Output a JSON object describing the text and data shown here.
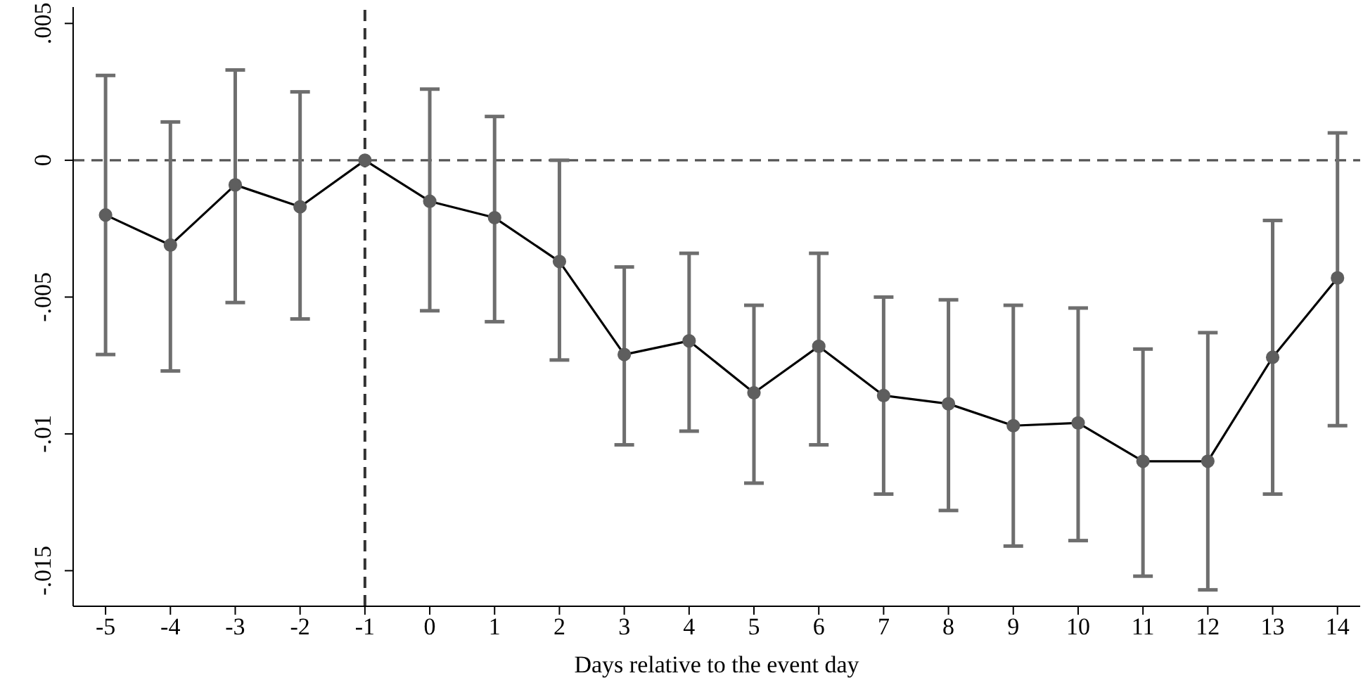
{
  "chart_data": {
    "type": "line",
    "xlabel": "Days relative to the event day",
    "x": [
      -5,
      -4,
      -3,
      -2,
      -1,
      0,
      1,
      2,
      3,
      4,
      5,
      6,
      7,
      8,
      9,
      10,
      11,
      12,
      13,
      14
    ],
    "series": [
      {
        "color": "#5e5e5e",
        "values": [
          -0.002,
          -0.0031,
          -0.0009,
          -0.0017,
          0,
          -0.0015,
          -0.0021,
          -0.0037,
          -0.0071,
          -0.0066,
          -0.0085,
          -0.0068,
          -0.0086,
          -0.0089,
          -0.0097,
          -0.0096,
          -0.011,
          -0.011,
          -0.0072,
          -0.0043
        ],
        "errors": [
          [
            -0.0071,
            0.0031
          ],
          [
            -0.0077,
            0.0014
          ],
          [
            -0.0052,
            0.0033
          ],
          [
            -0.0058,
            0.0025
          ],
          null,
          [
            -0.0055,
            0.0026
          ],
          [
            -0.0059,
            0.0016
          ],
          [
            -0.0073,
            0.0
          ],
          [
            -0.0104,
            -0.0039
          ],
          [
            -0.0099,
            -0.0034
          ],
          [
            -0.0118,
            -0.0053
          ],
          [
            -0.0104,
            -0.0034
          ],
          [
            -0.0122,
            -0.005
          ],
          [
            -0.0128,
            -0.0051
          ],
          [
            -0.0141,
            -0.0053
          ],
          [
            -0.0139,
            -0.0054
          ],
          [
            -0.0152,
            -0.0069
          ],
          [
            -0.0157,
            -0.0063
          ],
          [
            -0.0122,
            -0.0022
          ],
          [
            -0.0097,
            0.001
          ]
        ]
      }
    ],
    "xlim": [
      -5.5,
      14.35
    ],
    "xticks": [
      -5,
      -4,
      -3,
      -2,
      -1,
      0,
      1,
      2,
      3,
      4,
      5,
      6,
      7,
      8,
      9,
      10,
      11,
      12,
      13,
      14
    ],
    "ylim": [
      -0.0163,
      0.0056
    ],
    "yticks": [
      {
        "value": -0.015,
        "label": "-.015"
      },
      {
        "value": -0.01,
        "label": "-.01"
      },
      {
        "value": -0.005,
        "label": "-.005"
      },
      0,
      {
        "value": 0.005,
        "label": ".005"
      }
    ],
    "ref_lines": [
      {
        "axis": "y",
        "value": 0,
        "line_style": "dashed",
        "color": "#555555"
      },
      {
        "axis": "x",
        "value": -1,
        "line_style": "dashed",
        "color": "#333333"
      }
    ],
    "grid": false,
    "legend": false,
    "marker": "circle",
    "line_style": "solid"
  }
}
